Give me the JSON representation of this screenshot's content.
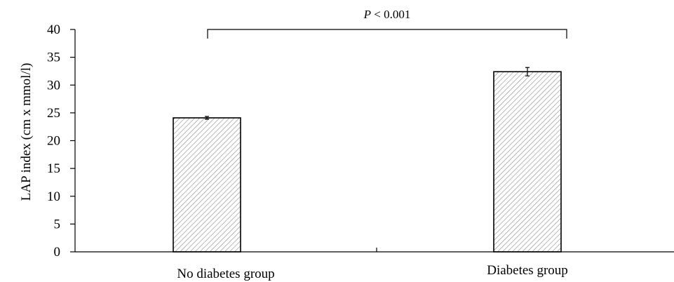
{
  "chart_data": {
    "type": "bar",
    "categories": [
      "No diabetes group",
      "Diabetes group"
    ],
    "values": [
      24.1,
      32.4
    ],
    "errors": [
      0.25,
      0.75
    ],
    "ylabel": "LAP index (cm x mmol/l)",
    "ylim": [
      0,
      40
    ],
    "yticks": [
      "0",
      "5",
      "10",
      "15",
      "20",
      "25",
      "30",
      "35",
      "40"
    ],
    "grid": false,
    "bar_fill": "diagonal-hatch",
    "annotation": {
      "italic": "P",
      "text": " < 0.001"
    }
  }
}
